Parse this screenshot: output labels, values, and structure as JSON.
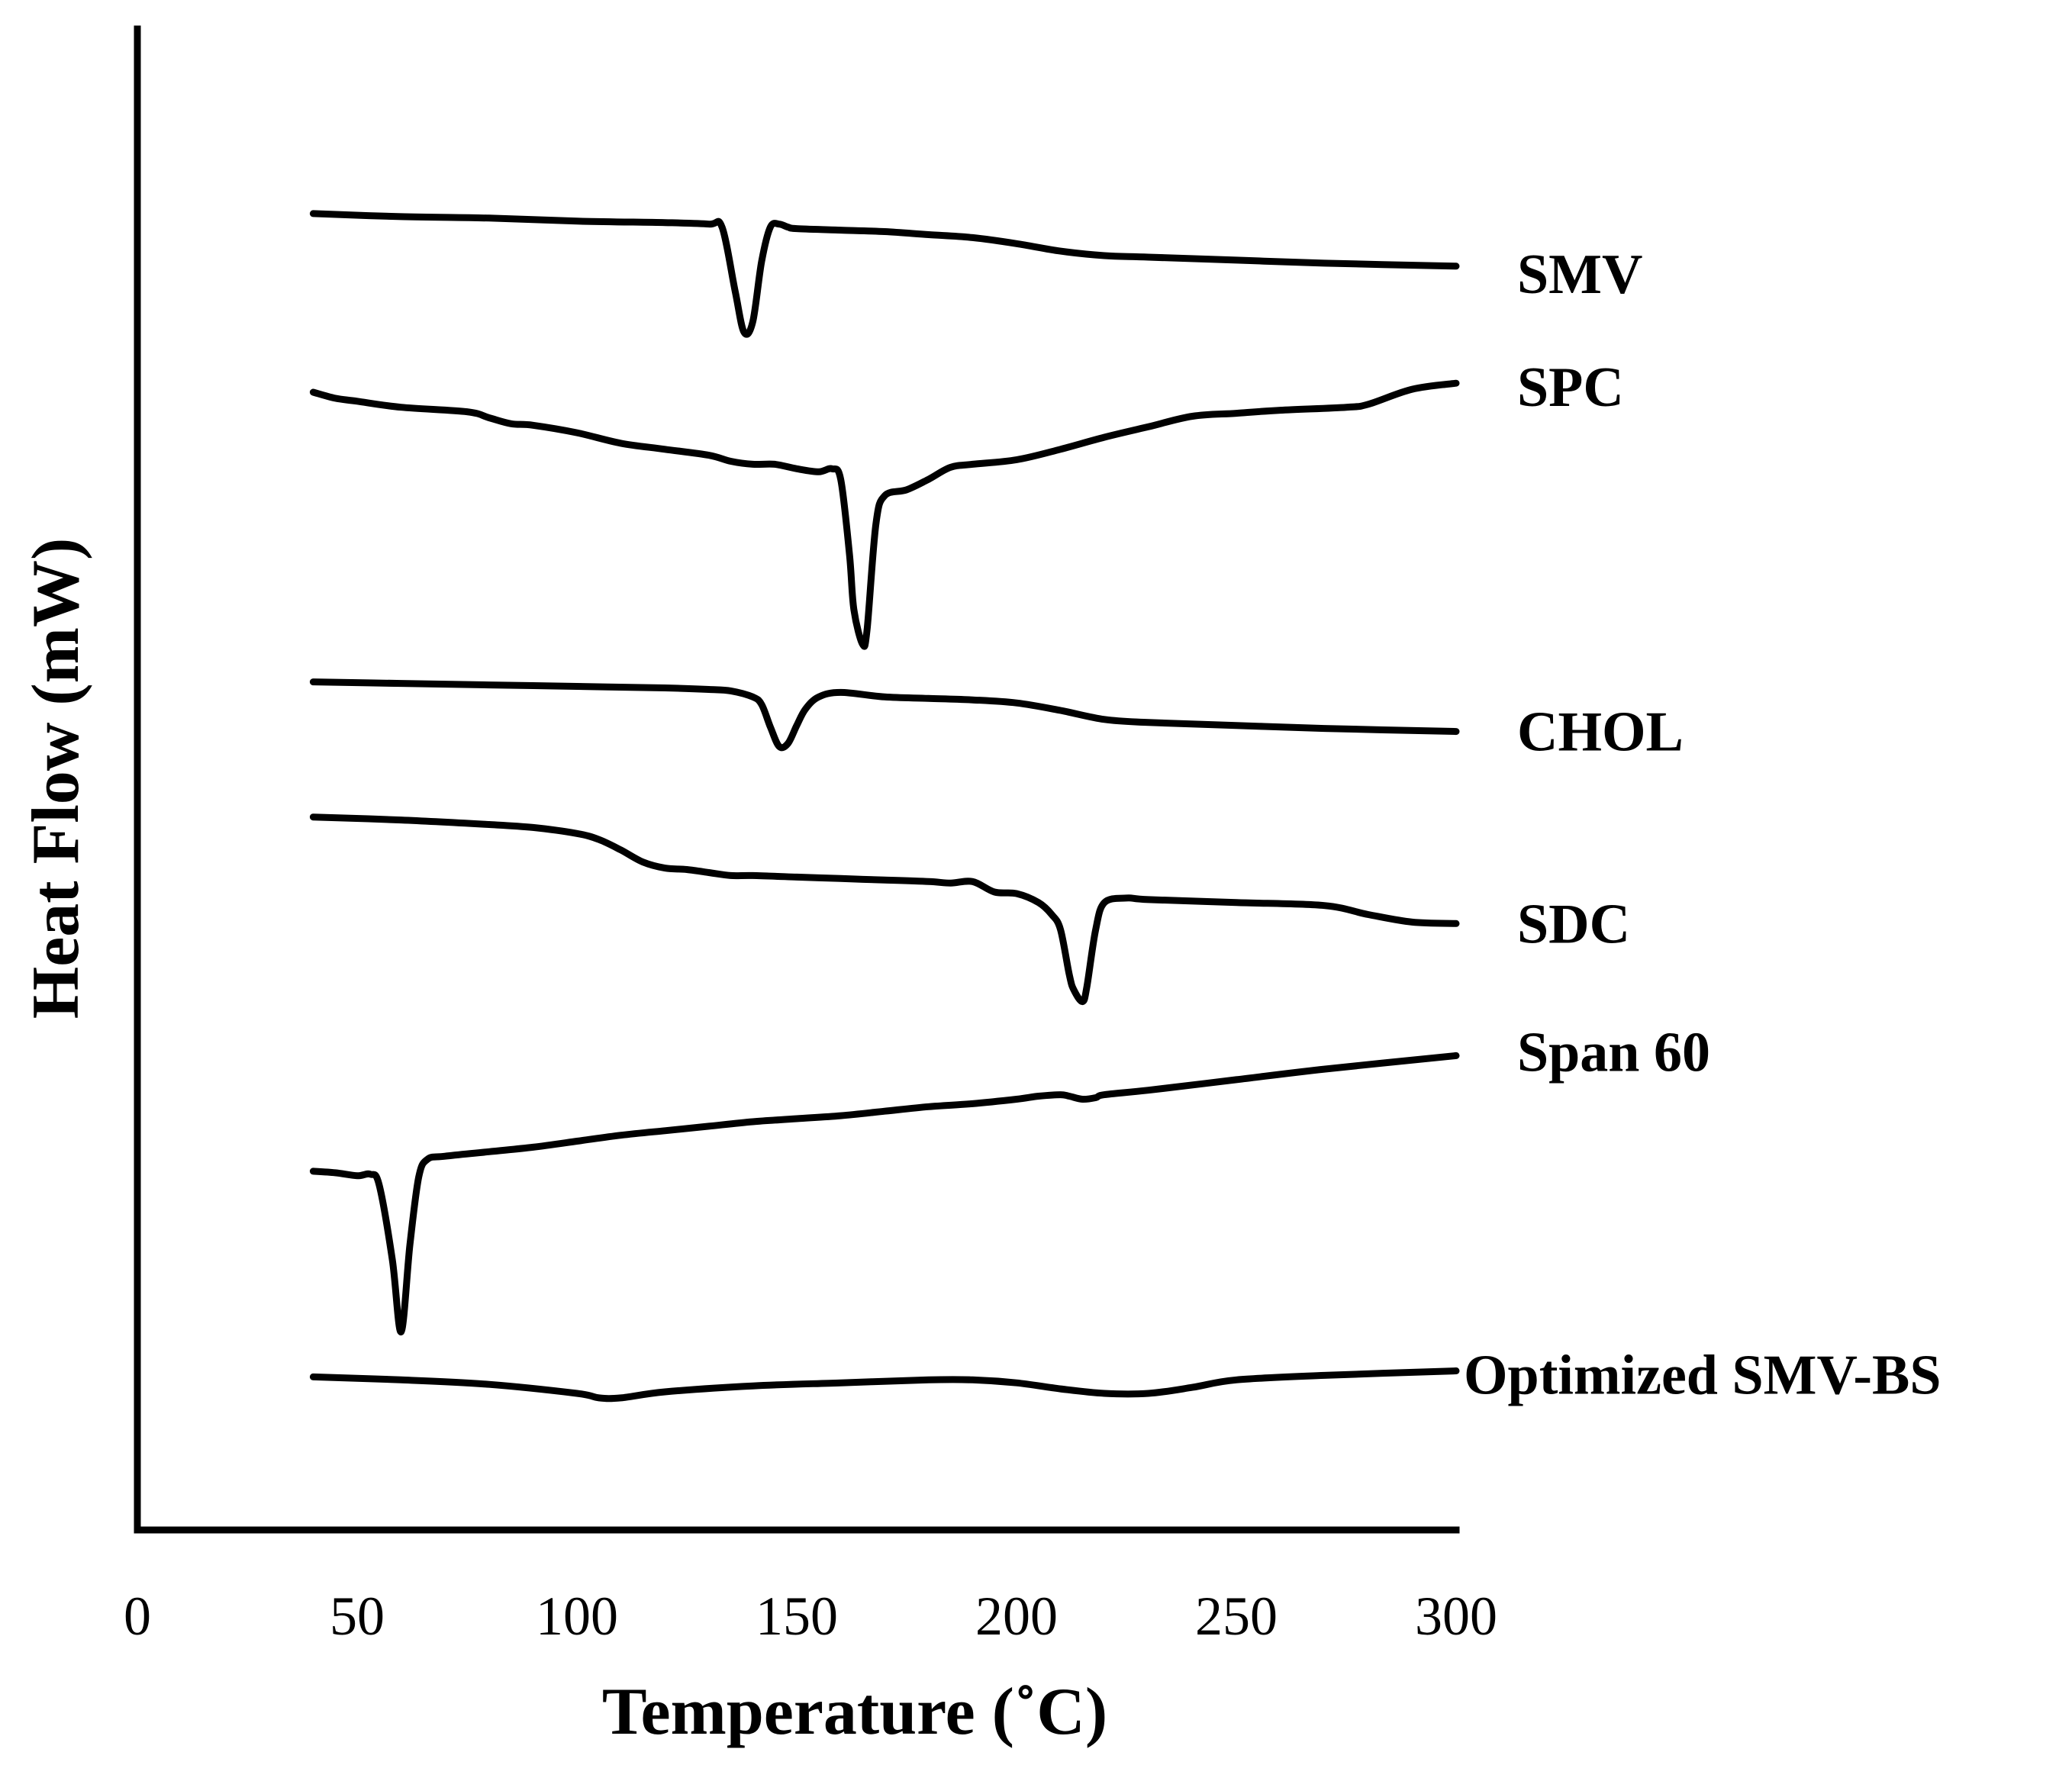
{
  "chart_data": {
    "type": "line",
    "title": "",
    "xlabel": "Temperature (˚C)",
    "ylabel": "Heat Flow (mW)",
    "xlim": [
      0,
      300
    ],
    "xticks": [
      0,
      50,
      100,
      150,
      200,
      250,
      300
    ],
    "ylim": [
      0,
      1000
    ],
    "yticks": [],
    "grid": false,
    "legend": "right-of-curve labels",
    "series": [
      {
        "name": "SMV",
        "x": [
          40,
          60,
          80,
          100,
          120,
          130,
          133,
          136,
          138,
          140,
          142,
          144,
          146,
          148,
          150,
          160,
          170,
          180,
          190,
          200,
          210,
          220,
          230,
          250,
          270,
          300
        ],
        "y": [
          877,
          875,
          874,
          872,
          871,
          870,
          868,
          825,
          798,
          805,
          845,
          868,
          870,
          868,
          867,
          866,
          865,
          863,
          861,
          857,
          852,
          849,
          848,
          846,
          844,
          842
        ]
      },
      {
        "name": "SPC",
        "x": [
          40,
          45,
          50,
          60,
          75,
          80,
          85,
          90,
          100,
          110,
          120,
          130,
          135,
          140,
          145,
          150,
          155,
          158,
          160,
          162,
          163,
          165,
          166,
          168,
          170,
          175,
          180,
          185,
          190,
          200,
          210,
          220,
          230,
          240,
          250,
          260,
          275,
          280,
          290,
          300
        ],
        "y": [
          758,
          754,
          752,
          748,
          745,
          741,
          737,
          736,
          731,
          724,
          720,
          716,
          712,
          710,
          710,
          707,
          705,
          707,
          700,
          650,
          613,
          590,
          600,
          670,
          689,
          693,
          700,
          708,
          710,
          713,
          720,
          728,
          735,
          742,
          744,
          746,
          748,
          750,
          760,
          764
        ]
      },
      {
        "name": "CHOL",
        "x": [
          40,
          60,
          80,
          100,
          120,
          130,
          135,
          140,
          142,
          144,
          146,
          148,
          150,
          152,
          155,
          160,
          170,
          180,
          190,
          200,
          210,
          220,
          230,
          250,
          270,
          300
        ],
        "y": [
          565,
          564,
          563,
          562,
          561,
          560,
          559,
          555,
          550,
          535,
          522,
          524,
          536,
          547,
          555,
          558,
          555,
          554,
          553,
          551,
          546,
          540,
          538,
          536,
          534,
          532
        ]
      },
      {
        "name": "SDC",
        "x": [
          40,
          60,
          80,
          90,
          100,
          105,
          110,
          115,
          120,
          125,
          130,
          135,
          140,
          150,
          160,
          170,
          180,
          185,
          190,
          195,
          200,
          205,
          208,
          210,
          212,
          213,
          215,
          216,
          218,
          220,
          225,
          230,
          250,
          270,
          280,
          290,
          300
        ],
        "y": [
          475,
          473,
          470,
          468,
          464,
          460,
          453,
          445,
          441,
          440,
          438,
          436,
          436,
          435,
          434,
          433,
          432,
          431,
          432,
          425,
          424,
          418,
          410,
          400,
          370,
          360,
          352,
          362,
          400,
          418,
          421,
          420,
          418,
          416,
          410,
          405,
          404
        ]
      },
      {
        "name": "Span 60",
        "x": [
          40,
          45,
          50,
          53,
          55,
          58,
          60,
          62,
          64,
          66,
          70,
          80,
          90,
          100,
          110,
          120,
          130,
          140,
          150,
          160,
          170,
          180,
          190,
          200,
          205,
          210,
          212,
          215,
          218,
          220,
          230,
          250,
          270,
          300
        ],
        "y": [
          239,
          238,
          236,
          237,
          230,
          180,
          132,
          190,
          235,
          247,
          249,
          252,
          255,
          259,
          263,
          266,
          269,
          272,
          274,
          276,
          279,
          282,
          284,
          287,
          289,
          290,
          289,
          287,
          288,
          290,
          293,
          300,
          307,
          316
        ]
      },
      {
        "name": "Optimized SMV-BS",
        "x": [
          40,
          60,
          80,
          100,
          105,
          110,
          120,
          140,
          160,
          180,
          190,
          200,
          210,
          220,
          230,
          240,
          250,
          270,
          300
        ],
        "y": [
          102,
          100,
          97,
          91,
          88,
          88,
          92,
          96,
          98,
          100,
          100,
          98,
          94,
          91,
          91,
          95,
          100,
          103,
          106
        ]
      }
    ]
  }
}
